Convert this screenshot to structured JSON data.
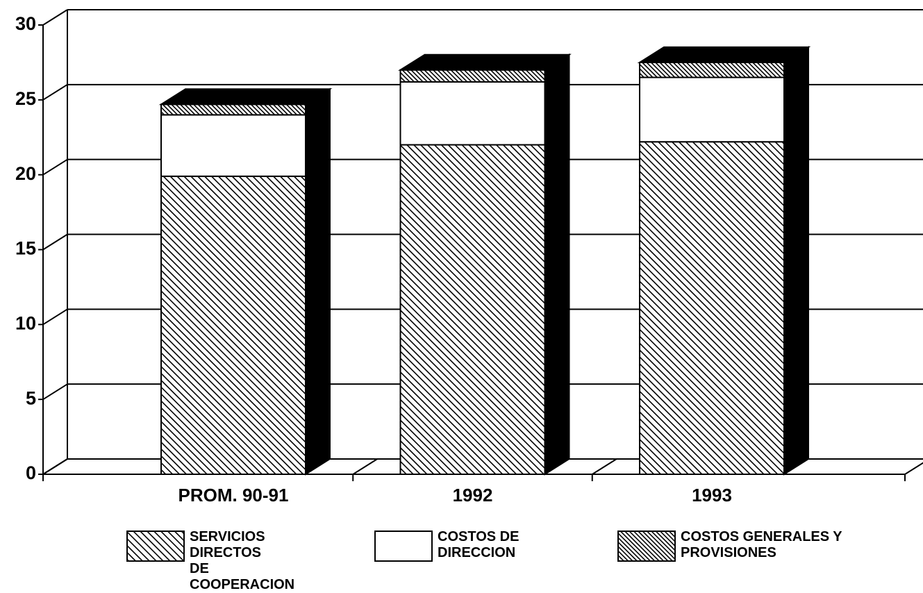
{
  "chart_data": {
    "type": "bar",
    "stacked": true,
    "three_d": true,
    "categories": [
      "PROM. 90-91",
      "1992",
      "1993"
    ],
    "series": [
      {
        "name": "SERVICIOS DIRECTOS DE COOPERACION",
        "color": "#000000",
        "fill": "hatch",
        "values": [
          19.9,
          22,
          22.2
        ]
      },
      {
        "name": "COSTOS DE DIRECCION",
        "color": "#ffffff",
        "fill": "solid",
        "values": [
          4.1,
          4.2,
          4.3
        ]
      },
      {
        "name": "COSTOS GENERALES Y PROVISIONES",
        "color": "#000000",
        "fill": "dense-hatch",
        "values": [
          0.7,
          0.8,
          1.0
        ]
      }
    ],
    "ylim": [
      0,
      30
    ],
    "yticks": [
      0,
      5,
      10,
      15,
      20,
      25,
      30
    ],
    "grid": true,
    "legend": "bottom"
  }
}
